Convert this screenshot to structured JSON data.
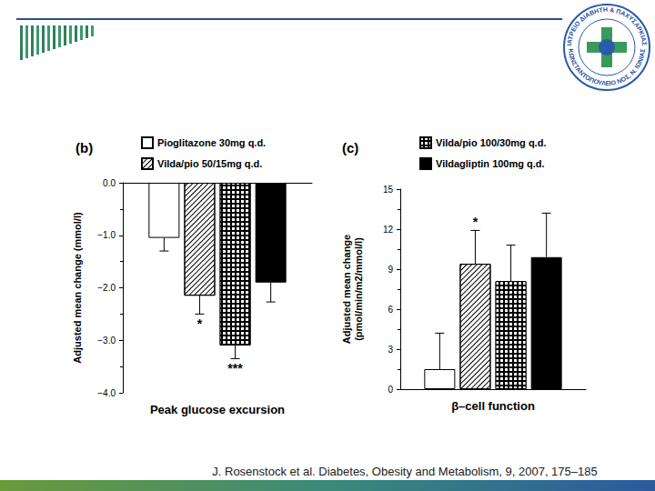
{
  "chart_data": [
    {
      "type": "bar",
      "title": "(b)",
      "categories": [
        "Peak glucose excursion"
      ],
      "ylabel": "Adjusted mean change (mmol/l)",
      "ylim": [
        -4,
        0
      ],
      "yticks": [
        {
          "value": -4,
          "label": "−4.0"
        },
        {
          "value": -3,
          "label": "−3.0"
        },
        {
          "value": -2,
          "label": "−2.0"
        },
        {
          "value": -1,
          "label": "−1.0"
        },
        {
          "value": 0,
          "label": "0.0"
        }
      ],
      "legend": "upper left",
      "series": [
        {
          "name": "Pioglitazone 30mg q.d.",
          "color": "#ffffff",
          "values": [
            -1.05
          ],
          "errors": [
            0.25
          ]
        },
        {
          "name": "Vilda/pio 50/15mg q.d.",
          "color": "#ffffff",
          "values": [
            -2.15
          ],
          "errors": [
            0.35
          ],
          "annotation": "*"
        },
        {
          "color": "#000000",
          "values": [
            -3.1
          ],
          "errors": [
            0.25
          ],
          "annotation": "***"
        },
        {
          "color": "#000000",
          "values": [
            -1.9
          ],
          "errors": [
            0.37
          ]
        }
      ]
    },
    {
      "type": "bar",
      "title": "(c)",
      "categories": [
        "β–cell function"
      ],
      "ylabel": "Adjusted mean change\n(pmol/min/m2/mmol/l)",
      "ylim": [
        0,
        15
      ],
      "yticks": [
        0,
        3,
        6,
        9,
        12,
        15
      ],
      "legend": "upper left",
      "series": [
        {
          "color": "#ffffff",
          "values": [
            1.5
          ],
          "errors": [
            2.7
          ]
        },
        {
          "color": "#ffffff",
          "values": [
            9.4
          ],
          "errors": [
            2.5
          ],
          "annotation": "*"
        },
        {
          "name": "Vilda/pio 100/30mg q.d.",
          "color": "#000000",
          "values": [
            8.1
          ],
          "errors": [
            2.7
          ]
        },
        {
          "name": "Vildagliptin 100mg q.d.",
          "color": "#000000",
          "values": [
            9.9
          ],
          "errors": [
            3.3
          ]
        }
      ]
    }
  ],
  "footer": "J. Rosenstock et al. Diabetes, Obesity and Metabolism, 9, 2007, 175–185",
  "logo": {
    "top_text": "ΙΑΤΡΕΙΟ ΔΙΑΒΗΤΗ & ΠΑΧΥΣΑΡΚΙΑΣ",
    "bottom_text": "ΚΩΝΣΤΑΝΤΟΠΟΥΛΕΙΟ ΝΟΣ. Ν. ΙΩΝΙΑΣ"
  }
}
